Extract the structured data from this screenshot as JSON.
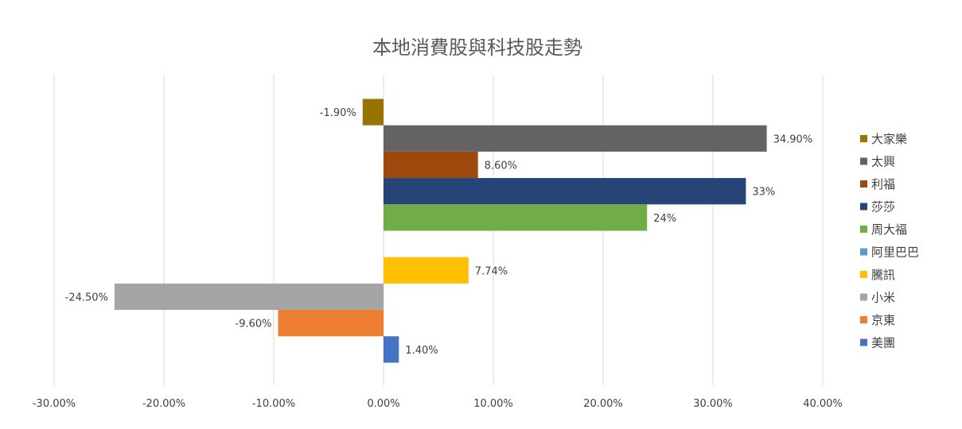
{
  "chart_data": {
    "type": "bar",
    "orientation": "horizontal",
    "title": "本地消費股與科技股走勢",
    "xlabel": "",
    "ylabel": "",
    "xlim": [
      -30,
      40
    ],
    "x_ticks": [
      "-30.00%",
      "-20.00%",
      "-10.00%",
      "0.00%",
      "10.00%",
      "20.00%",
      "30.00%",
      "40.00%"
    ],
    "grid": true,
    "legend_position": "right",
    "series": [
      {
        "name": "大家樂",
        "value": -1.9,
        "label": "-1.90%",
        "color": "#997300",
        "group": 0
      },
      {
        "name": "太興",
        "value": 34.9,
        "label": "34.90%",
        "color": "#636363",
        "group": 0
      },
      {
        "name": "利福",
        "value": 8.6,
        "label": "8.60%",
        "color": "#9e480e",
        "group": 0
      },
      {
        "name": "莎莎",
        "value": 33,
        "label": "33%",
        "color": "#264478",
        "group": 0
      },
      {
        "name": "周大福",
        "value": 24,
        "label": "24%",
        "color": "#70ad47",
        "group": 0
      },
      {
        "name": "阿里巴巴",
        "value": null,
        "label": "",
        "color": "#5b9bd5",
        "group": 1
      },
      {
        "name": "騰訊",
        "value": 7.74,
        "label": "7.74%",
        "color": "#ffc000",
        "group": 1
      },
      {
        "name": "小米",
        "value": -24.5,
        "label": "-24.50%",
        "color": "#a5a5a5",
        "group": 1
      },
      {
        "name": "京東",
        "value": -9.6,
        "label": "-9.60%",
        "color": "#ed7d31",
        "group": 1
      },
      {
        "name": "美團",
        "value": 1.4,
        "label": "1.40%",
        "color": "#4472c4",
        "group": 1
      }
    ]
  }
}
